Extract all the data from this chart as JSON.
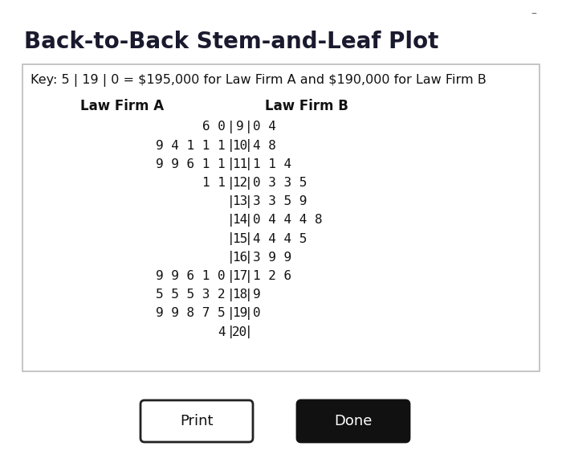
{
  "title": "Back-to-Back Stem-and-Leaf Plot",
  "key_text": "Key: 5 | 19 | 0 = $195,000 for Law Firm A and $190,000 for Law Firm B",
  "label_a": "Law Firm A",
  "label_b": "Law Firm B",
  "rows": [
    {
      "stem": "9",
      "left": "60",
      "right": "04"
    },
    {
      "stem": "10",
      "left": "94111",
      "right": "48"
    },
    {
      "stem": "11",
      "left": "99611",
      "right": "114"
    },
    {
      "stem": "12",
      "left": "11",
      "right": "0335"
    },
    {
      "stem": "13",
      "left": "",
      "right": "3359"
    },
    {
      "stem": "14",
      "left": "",
      "right": "04448"
    },
    {
      "stem": "15",
      "left": "",
      "right": "4445"
    },
    {
      "stem": "16",
      "left": "",
      "right": "399"
    },
    {
      "stem": "17",
      "left": "99610",
      "right": "126"
    },
    {
      "stem": "18",
      "left": "55532",
      "right": "9"
    },
    {
      "stem": "19",
      "left": "99875",
      "right": "0"
    },
    {
      "stem": "20",
      "left": "4",
      "right": ""
    }
  ],
  "background_color": "#ffffff",
  "box_edge_color": "#bbbbbb",
  "title_fontsize": 20,
  "key_fontsize": 11.5,
  "data_fontsize": 11.5,
  "header_fontsize": 12,
  "button_print_text": "Print",
  "button_done_text": "Done",
  "title_color": "#1a1a2e",
  "text_color": "#111111",
  "dash_color": "#666666"
}
